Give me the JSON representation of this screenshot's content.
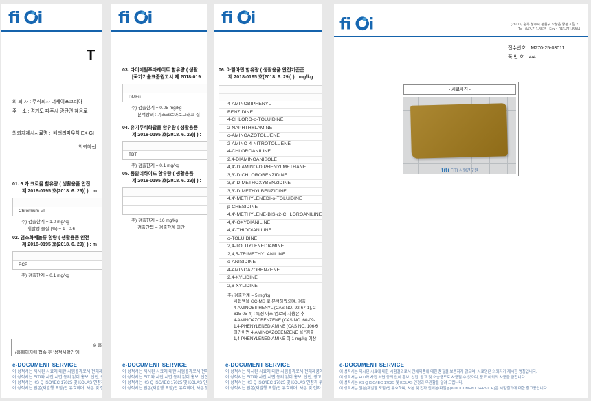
{
  "brand": {
    "name": "fiti",
    "accent": "#1563ac"
  },
  "page1": {
    "title_fragment": "T",
    "client_lines": [
      "의 뢰 자 : 주식회사 더세이프코리아",
      "주    소 : 경기도 파주시 광탄면 혜음로",
      "의뢰자제시시료명 :  배터리파우치 EX-GI"
    ],
    "request_fragment": "의뢰하신",
    "sections": [
      {
        "heading": "01. 6 가 크로뮴 함유량 ( 생활용품 안전",
        "heading2": "제 2018-0195 호(2018. 6. 29)] ) : m",
        "rows": [
          "",
          "Chromium VI"
        ],
        "notes": [
          "주) 검출한계 = 1.0 mg/kg",
          "휘발성 물질 (%) = 1 : 0.6"
        ]
      },
      {
        "heading": "02. 염소화페놀류 함량 ( 생활용품 안전",
        "heading2": "제 2018-0195 호(2018. 6. 29)] ) : m",
        "rows": [
          "",
          "PCP"
        ],
        "notes": [
          "주) 검출한계 = 0.1 mg/kg"
        ]
      }
    ],
    "notice": {
      "line1": "※ 홈",
      "line2": "(홈페이지에 접속 후 '성적서확인'에"
    }
  },
  "page2": {
    "sections": [
      {
        "heading": "03. 다이메틸푸마레이트 함유량 ( 생활",
        "heading2": "[국가기술표준원고시 제 2018-019",
        "rows": [
          "",
          "DMFu"
        ],
        "notes": [
          "주) 검출한계 = 0.05 mg/kg",
          "분석장비 : 가스크로마토그래프 질"
        ]
      },
      {
        "heading": "04. 유기주석화합물 함유량 ( 생활용품",
        "heading2": "제 2018-0195 호(2018. 6. 29)] ) :",
        "rows": [
          "",
          "TBT"
        ],
        "notes": [
          "주) 검출한계 = 0.1 mg/kg"
        ]
      },
      {
        "heading": "05. 폼알데하이드 함유량 ( 생활용품",
        "heading2": "제 2018-0195 호(2018. 6. 29)] ) :",
        "rows": [
          "",
          "",
          ""
        ],
        "notes": [
          "주) 검출한계 = 16 mg/kg",
          "검출안됨 = 검출한계 미만"
        ]
      }
    ]
  },
  "page3": {
    "section": {
      "heading": "06. 아릴아민 함유량 ( 생활용품 안전기준준",
      "heading2": "제 2018-0195 호(2018. 6. 29)] ) : mg/kg"
    },
    "chemicals": [
      "4-AMINOBIPHENYL",
      "BENZIDINE",
      "4-CHLORO-o-TOLUIDINE",
      "2-NAPHTHYLAMINE",
      "o-AMINOAZOTOLUENE",
      "2-AMINO-4-NITROTOLUENE",
      "4-CHLOROANILINE",
      "2,4-DIAMINOANISOLE",
      "4,4'-DIAMINO-DIPHENYLMETHANE",
      "3,3'-DICHLOROBENZIDINE",
      "3,3'-DIMETHOXYBENZIDINE",
      "3,3'-DIMETHYLBENZIDINE",
      "4,4'-METHYLENEDI-o-TOLUIDINE",
      "p-CRESIDINE",
      "4,4'-METHYLENE-BIS-(2-CHLOROANILINE",
      "4,4'-OXYDIANILINE",
      "4,4'-THIODIANILINE",
      "o-TOLUIDINE",
      "2,4-TOLUYLENEDIAMINE",
      "2,4,5-TRIMETHYLANILINE",
      "o-ANISIDINE",
      "4-AMINOAZOBENZENE",
      "2,4-XYLIDINE",
      "2,6-XYLIDINE"
    ],
    "notes": [
      "주) 검출한계 = 5 mg/kg",
      "시험액을 GC-MS 로 분석하였으며, 검출",
      "4-AMINOBIPHENYL (CAS NO. 92-67-1), 2",
      "615-05-4) : 특정 아조 염료의 사용은 추",
      "4-AMINOAZOBENZENE (CAS NO. 60-09-",
      "1,4-PHENYLENEDIAMINE (CAS NO. 106-5",
      "미만이면 4-AMINOAZOBENZENE 을 \"검출",
      "1,4-PHENYLENEDIAMINE 이 1 mg/kg 이상"
    ],
    "end_fragment": "**"
  },
  "page4": {
    "address": "(28115) 충북 청주시 청원구 오창읍 양청 3 길 21",
    "telfax": "Tel : 043-711-8875   Fax :  043-711-8804",
    "receipt": "접수번호 :  M270-25-03011",
    "page_no": "쪽 번 호 :  4/4",
    "photo_title": "-  시료사진  -",
    "watermark_logo": "fiti",
    "watermark_text": "FITI 시험연구원",
    "fabric_color": "#a27a1b"
  },
  "footer": {
    "title": "e-DOCUMENT SERVICE",
    "lines": [
      "이 성적서는 제시된 시료에 대한 시험결과로서 전체제품에 대한 품질을 보증하지 않으며, 시료명은 의뢰자가 제시한 명칭입니다.",
      "이 성적서는 FITI와 사전 서면 동의 없이 홍보, 선전, 광고 및 소송용도로 사용될 수 없으며, 용도 이외의 사용을 금합니다.",
      "이 성적서는 KS Q ISO/IEC 17025 및 KOLAS 인정과 무관함을 알려 드립니다.",
      "이 성적서는 원본(재발행 포함)만 유효하며, 사본 및 전자 인쇄본/파일본(e-DOCUMENT SERVICE)은 시험결과에 대한 참고용입니다."
    ]
  }
}
